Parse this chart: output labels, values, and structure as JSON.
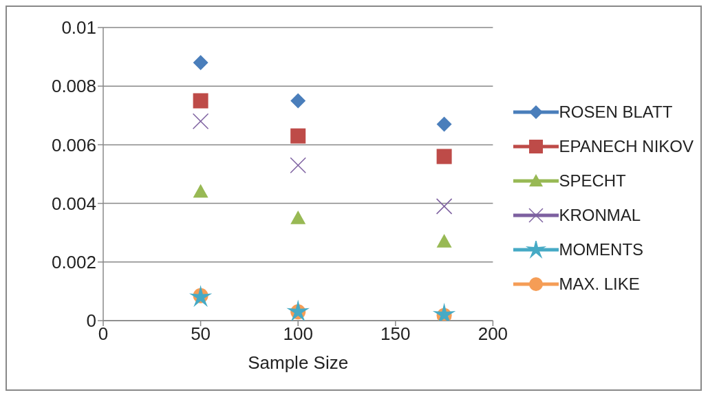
{
  "chart_data": {
    "type": "scatter",
    "xlabel": "Sample Size",
    "x": [
      50,
      100,
      175
    ],
    "series": [
      {
        "name": "ROSEN BLATT",
        "color": "#4a7ebb",
        "marker": "diamond",
        "values": [
          0.0088,
          0.0075,
          0.0067
        ]
      },
      {
        "name": "EPANECH NIKOV",
        "color": "#be4b48",
        "marker": "square",
        "values": [
          0.0075,
          0.0063,
          0.0056
        ]
      },
      {
        "name": "SPECHT",
        "color": "#98b954",
        "marker": "triangle",
        "values": [
          0.0044,
          0.0035,
          0.0027
        ]
      },
      {
        "name": "KRONMAL",
        "color": "#7d60a0",
        "marker": "cross",
        "values": [
          0.0068,
          0.0053,
          0.0039
        ]
      },
      {
        "name": "MOMENTS",
        "color": "#46aac5",
        "marker": "star",
        "values": [
          0.0008,
          0.0003,
          0.0002
        ]
      },
      {
        "name": "MAX. LIKE",
        "color": "#f59d56",
        "marker": "circle",
        "values": [
          0.00085,
          0.0003,
          0.00017
        ]
      }
    ],
    "xlim": [
      0,
      200
    ],
    "xticks": [
      0,
      50,
      100,
      150,
      200
    ],
    "ylim": [
      0,
      0.01
    ],
    "yticks": [
      0,
      0.002,
      0.004,
      0.006,
      0.008,
      0.01
    ],
    "grid": "y",
    "legend": "right"
  }
}
